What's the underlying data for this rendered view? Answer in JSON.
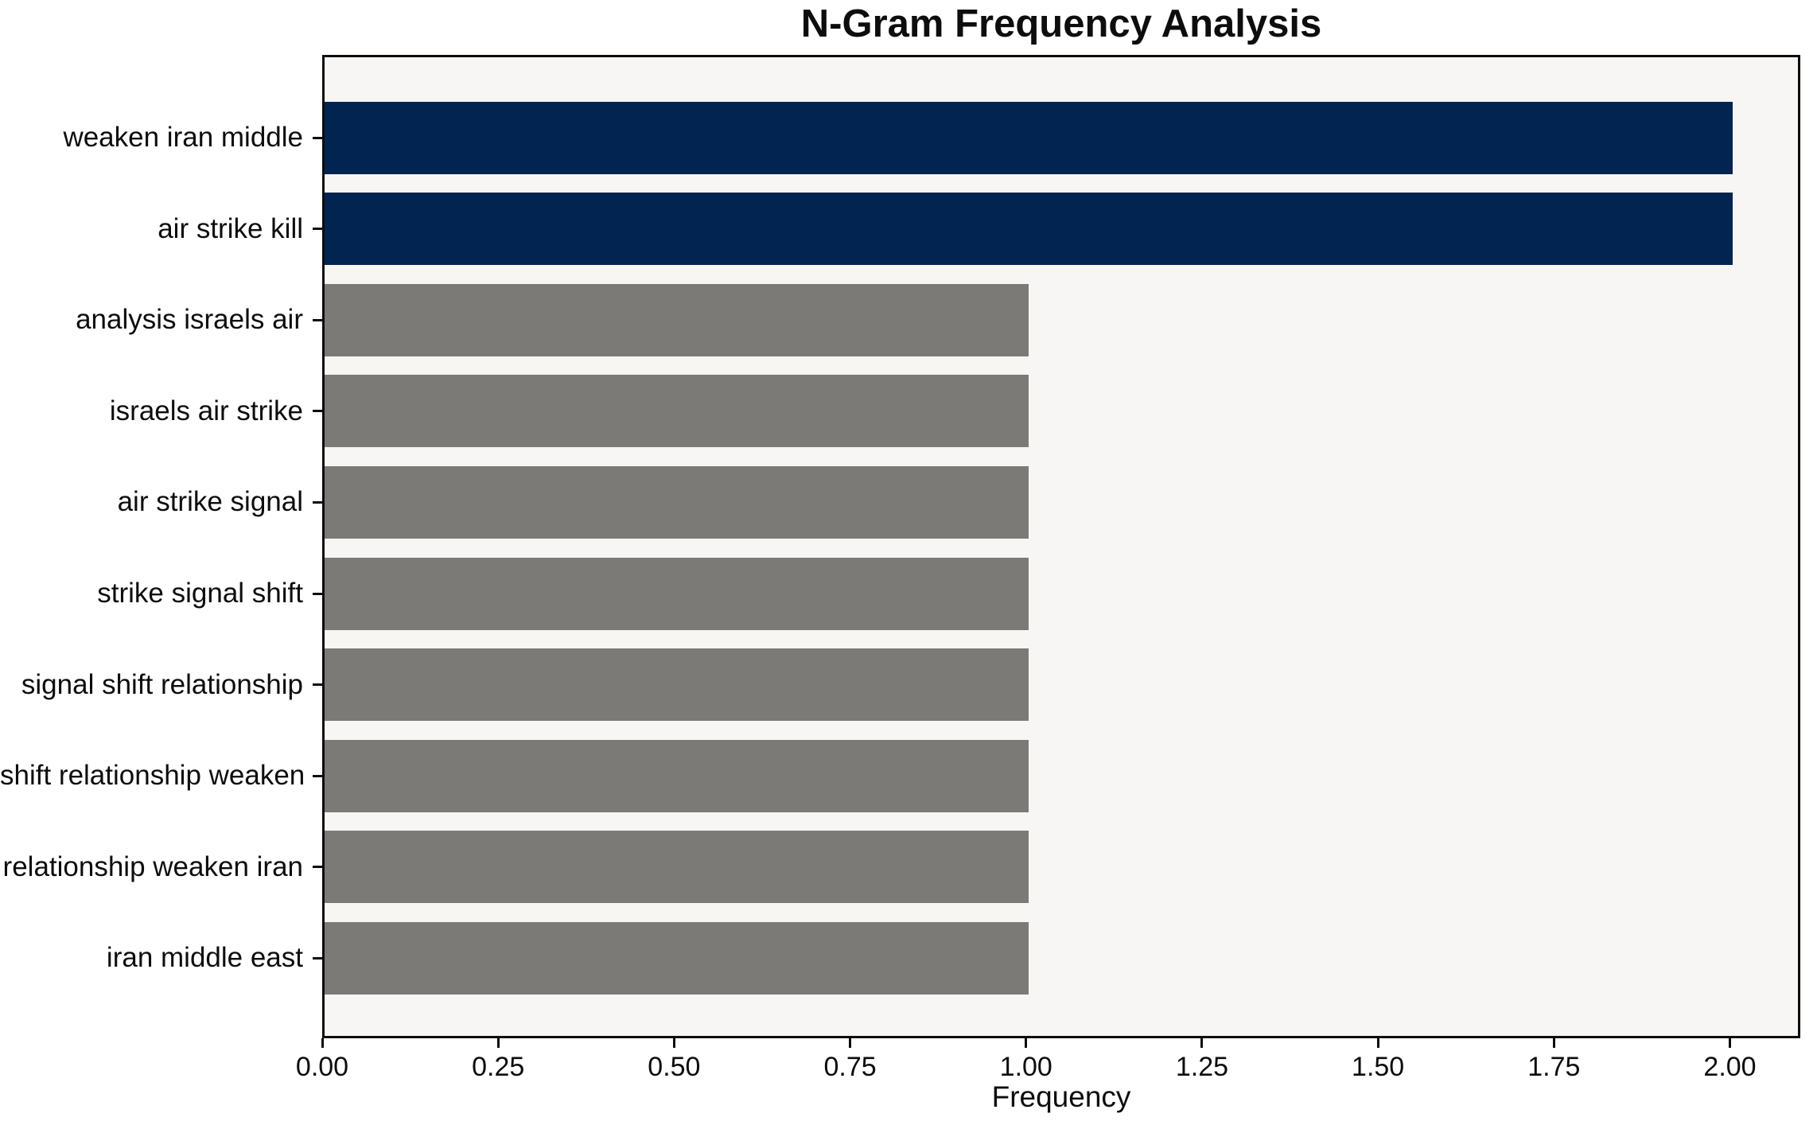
{
  "chart_data": {
    "type": "bar",
    "orientation": "horizontal",
    "title": "N-Gram Frequency Analysis",
    "xlabel": "Frequency",
    "ylabel": "",
    "categories": [
      "weaken iran middle",
      "air strike kill",
      "analysis israels air",
      "israels air strike",
      "air strike signal",
      "strike signal shift",
      "signal shift relationship",
      "shift relationship weaken",
      "relationship weaken iran",
      "iran middle east"
    ],
    "values": [
      2,
      2,
      1,
      1,
      1,
      1,
      1,
      1,
      1,
      1
    ],
    "bar_colors": [
      "#022450",
      "#022450",
      "#7b7a77",
      "#7b7a77",
      "#7b7a77",
      "#7b7a77",
      "#7b7a77",
      "#7b7a77",
      "#7b7a77",
      "#7b7a77"
    ],
    "xlim": [
      0,
      2.1
    ],
    "x_tick_values": [
      0,
      0.25,
      0.5,
      0.75,
      1.0,
      1.25,
      1.5,
      1.75,
      2.0
    ],
    "x_tick_labels": [
      "0.00",
      "0.25",
      "0.50",
      "0.75",
      "1.00",
      "1.25",
      "1.50",
      "1.75",
      "2.00"
    ],
    "grid": false,
    "legend": null,
    "colors": {
      "highlight_bar": "#022450",
      "default_bar": "#7b7a77",
      "plot_background": "#f7f6f4",
      "page_background": "#ffffff",
      "spine": "#0d0d0d",
      "text": "#0d0d0d"
    }
  }
}
